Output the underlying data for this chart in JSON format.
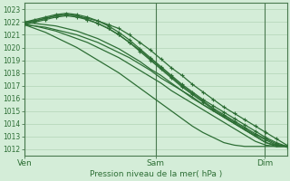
{
  "title": "Pression niveau de la mer( hPa )",
  "bg_color": "#d4edd8",
  "grid_color": "#b8d8bc",
  "line_color": "#2d6e35",
  "ylim": [
    1011.5,
    1023.5
  ],
  "xlim": [
    0,
    48
  ],
  "ylabel_ticks": [
    1012,
    1013,
    1014,
    1015,
    1016,
    1017,
    1018,
    1019,
    1020,
    1021,
    1022,
    1023
  ],
  "xtick_positions": [
    0,
    24,
    44
  ],
  "xtick_labels": [
    "Ven",
    "Sam",
    "Dim"
  ],
  "series_with_markers": [
    [
      1022.0,
      1022.1,
      1022.3,
      1022.5,
      1022.6,
      1022.5,
      1022.3,
      1022.1,
      1021.8,
      1021.5,
      1021.0,
      1020.4,
      1019.8,
      1019.1,
      1018.4,
      1017.8,
      1017.1,
      1016.5,
      1015.9,
      1015.3,
      1014.8,
      1014.3,
      1013.8,
      1013.3,
      1012.8,
      1012.3
    ],
    [
      1021.9,
      1022.1,
      1022.3,
      1022.5,
      1022.6,
      1022.5,
      1022.2,
      1021.9,
      1021.5,
      1021.0,
      1020.4,
      1019.8,
      1019.1,
      1018.4,
      1017.7,
      1017.0,
      1016.4,
      1015.8,
      1015.2,
      1014.7,
      1014.2,
      1013.7,
      1013.2,
      1012.8,
      1012.4,
      1012.2
    ],
    [
      1021.8,
      1022.0,
      1022.2,
      1022.4,
      1022.5,
      1022.4,
      1022.2,
      1021.9,
      1021.5,
      1021.0,
      1020.4,
      1019.7,
      1019.0,
      1018.3,
      1017.6,
      1016.9,
      1016.3,
      1015.7,
      1015.1,
      1014.6,
      1014.1,
      1013.6,
      1013.1,
      1012.7,
      1012.3,
      1012.2
    ],
    [
      1022.0,
      1022.2,
      1022.4,
      1022.6,
      1022.7,
      1022.6,
      1022.4,
      1022.1,
      1021.7,
      1021.2,
      1020.6,
      1019.9,
      1019.2,
      1018.5,
      1017.8,
      1017.1,
      1016.5,
      1015.9,
      1015.4,
      1014.9,
      1014.4,
      1013.9,
      1013.4,
      1012.9,
      1012.5,
      1012.2
    ]
  ],
  "series_smooth": [
    [
      1022.0,
      1021.9,
      1021.8,
      1021.7,
      1021.5,
      1021.3,
      1021.0,
      1020.7,
      1020.3,
      1019.9,
      1019.4,
      1018.9,
      1018.3,
      1017.8,
      1017.2,
      1016.6,
      1016.1,
      1015.5,
      1015.0,
      1014.5,
      1014.0,
      1013.5,
      1013.0,
      1012.5,
      1012.2,
      1012.2
    ],
    [
      1021.8,
      1021.7,
      1021.6,
      1021.4,
      1021.2,
      1021.0,
      1020.7,
      1020.4,
      1020.0,
      1019.6,
      1019.2,
      1018.7,
      1018.2,
      1017.6,
      1017.1,
      1016.6,
      1016.0,
      1015.5,
      1015.0,
      1014.5,
      1014.0,
      1013.5,
      1013.0,
      1012.5,
      1012.3,
      1012.2
    ],
    [
      1021.8,
      1021.7,
      1021.5,
      1021.3,
      1021.0,
      1020.7,
      1020.4,
      1020.0,
      1019.6,
      1019.2,
      1018.7,
      1018.2,
      1017.7,
      1017.2,
      1016.6,
      1016.1,
      1015.6,
      1015.1,
      1014.6,
      1014.1,
      1013.6,
      1013.1,
      1012.6,
      1012.3,
      1012.2,
      1012.2
    ],
    [
      1021.8,
      1021.5,
      1021.2,
      1020.8,
      1020.4,
      1020.0,
      1019.5,
      1019.0,
      1018.5,
      1018.0,
      1017.4,
      1016.8,
      1016.2,
      1015.6,
      1015.0,
      1014.4,
      1013.8,
      1013.3,
      1012.9,
      1012.5,
      1012.3,
      1012.2,
      1012.2,
      1012.2,
      1012.2,
      1012.2
    ]
  ]
}
